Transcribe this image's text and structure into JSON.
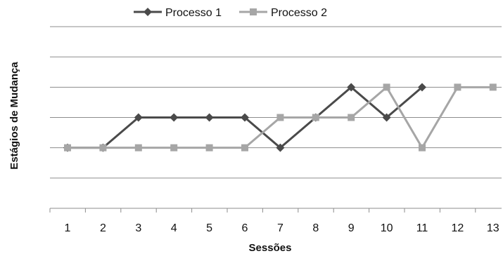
{
  "chart_data": {
    "type": "line",
    "title": "",
    "xlabel": "Sessões",
    "ylabel": "Estágios de Mudança",
    "categories": [
      "1",
      "2",
      "3",
      "4",
      "5",
      "6",
      "7",
      "8",
      "9",
      "10",
      "11",
      "12",
      "13"
    ],
    "ylim": [
      0,
      6
    ],
    "grid": true,
    "legend_position": "top",
    "series": [
      {
        "name": "Processo 1",
        "color": "#4a4a4a",
        "marker": "diamond",
        "values": [
          2,
          2,
          3,
          3,
          3,
          3,
          2,
          3,
          4,
          3,
          4,
          null,
          null
        ]
      },
      {
        "name": "Processo 2",
        "color": "#a6a6a6",
        "marker": "square",
        "values": [
          2,
          2,
          2,
          2,
          2,
          2,
          3,
          3,
          3,
          4,
          2,
          4,
          4
        ]
      }
    ]
  }
}
